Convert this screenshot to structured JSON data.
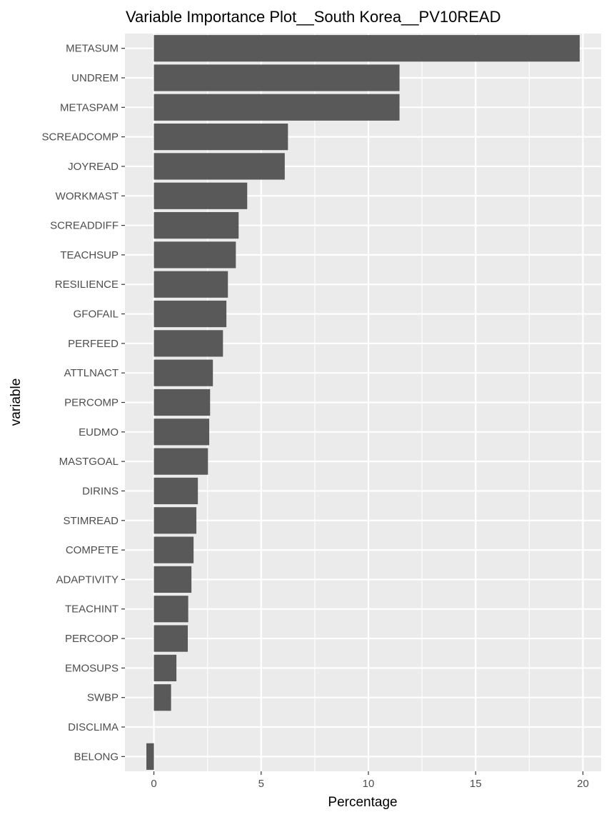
{
  "chart_data": {
    "type": "bar",
    "orientation": "horizontal",
    "title": "Variable Importance Plot__South Korea__PV10READ",
    "xlabel": "Percentage",
    "ylabel": "variable",
    "xlim": [
      -1.35,
      20.85
    ],
    "xticks": [
      0,
      5,
      10,
      15,
      20
    ],
    "grid": true,
    "bar_color": "#595959",
    "panel_color": "#ebebeb",
    "categories": [
      "METASUM",
      "UNDREM",
      "METASPAM",
      "SCREADCOMP",
      "JOYREAD",
      "WORKMAST",
      "SCREADDIFF",
      "TEACHSUP",
      "RESILIENCE",
      "GFOFAIL",
      "PERFEED",
      "ATTLNACT",
      "PERCOMP",
      "EUDMO",
      "MASTGOAL",
      "DIRINS",
      "STIMREAD",
      "COMPETE",
      "ADAPTIVITY",
      "TEACHINT",
      "PERCOOP",
      "EMOSUPS",
      "SWBP",
      "DISCLIMA",
      "BELONG"
    ],
    "values": [
      19.85,
      11.45,
      11.45,
      6.25,
      6.1,
      4.35,
      3.95,
      3.82,
      3.45,
      3.38,
      3.22,
      2.75,
      2.62,
      2.58,
      2.52,
      2.05,
      1.98,
      1.85,
      1.75,
      1.6,
      1.58,
      1.05,
      0.8,
      0.0,
      -0.35
    ]
  }
}
